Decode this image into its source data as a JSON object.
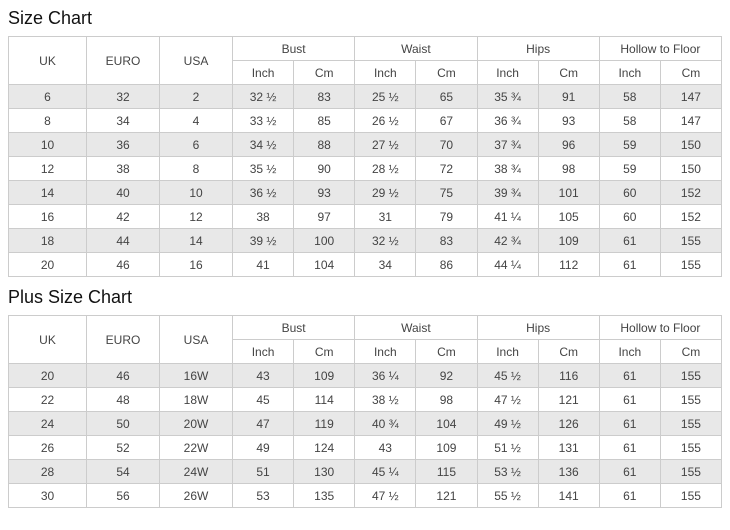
{
  "colors": {
    "border": "#cccccc",
    "row_alt_bg": "#e8e8e8",
    "text": "#444444",
    "title": "#111111",
    "background": "#ffffff"
  },
  "size_chart": {
    "title": "Size Chart",
    "columns": {
      "uk": "UK",
      "euro": "EURO",
      "usa": "USA",
      "inch": "Inch",
      "cm": "Cm",
      "groups": [
        "Bust",
        "Waist",
        "Hips",
        "Hollow to Floor"
      ]
    },
    "rows": [
      [
        "6",
        "32",
        "2",
        "32 ½",
        "83",
        "25 ½",
        "65",
        "35 ¾",
        "91",
        "58",
        "147"
      ],
      [
        "8",
        "34",
        "4",
        "33 ½",
        "85",
        "26 ½",
        "67",
        "36 ¾",
        "93",
        "58",
        "147"
      ],
      [
        "10",
        "36",
        "6",
        "34 ½",
        "88",
        "27 ½",
        "70",
        "37 ¾",
        "96",
        "59",
        "150"
      ],
      [
        "12",
        "38",
        "8",
        "35 ½",
        "90",
        "28 ½",
        "72",
        "38 ¾",
        "98",
        "59",
        "150"
      ],
      [
        "14",
        "40",
        "10",
        "36 ½",
        "93",
        "29 ½",
        "75",
        "39 ¾",
        "101",
        "60",
        "152"
      ],
      [
        "16",
        "42",
        "12",
        "38",
        "97",
        "31",
        "79",
        "41 ¼",
        "105",
        "60",
        "152"
      ],
      [
        "18",
        "44",
        "14",
        "39 ½",
        "100",
        "32 ½",
        "83",
        "42 ¾",
        "109",
        "61",
        "155"
      ],
      [
        "20",
        "46",
        "16",
        "41",
        "104",
        "34",
        "86",
        "44 ¼",
        "112",
        "61",
        "155"
      ]
    ]
  },
  "plus_size_chart": {
    "title": "Plus Size Chart",
    "columns": {
      "uk": "UK",
      "euro": "EURO",
      "usa": "USA",
      "inch": "Inch",
      "cm": "Cm",
      "groups": [
        "Bust",
        "Waist",
        "Hips",
        "Hollow to Floor"
      ]
    },
    "rows": [
      [
        "20",
        "46",
        "16W",
        "43",
        "109",
        "36 ¼",
        "92",
        "45 ½",
        "116",
        "61",
        "155"
      ],
      [
        "22",
        "48",
        "18W",
        "45",
        "114",
        "38 ½",
        "98",
        "47 ½",
        "121",
        "61",
        "155"
      ],
      [
        "24",
        "50",
        "20W",
        "47",
        "119",
        "40 ¾",
        "104",
        "49 ½",
        "126",
        "61",
        "155"
      ],
      [
        "26",
        "52",
        "22W",
        "49",
        "124",
        "43",
        "109",
        "51 ½",
        "131",
        "61",
        "155"
      ],
      [
        "28",
        "54",
        "24W",
        "51",
        "130",
        "45 ¼",
        "115",
        "53 ½",
        "136",
        "61",
        "155"
      ],
      [
        "30",
        "56",
        "26W",
        "53",
        "135",
        "47 ½",
        "121",
        "55 ½",
        "141",
        "61",
        "155"
      ]
    ]
  }
}
